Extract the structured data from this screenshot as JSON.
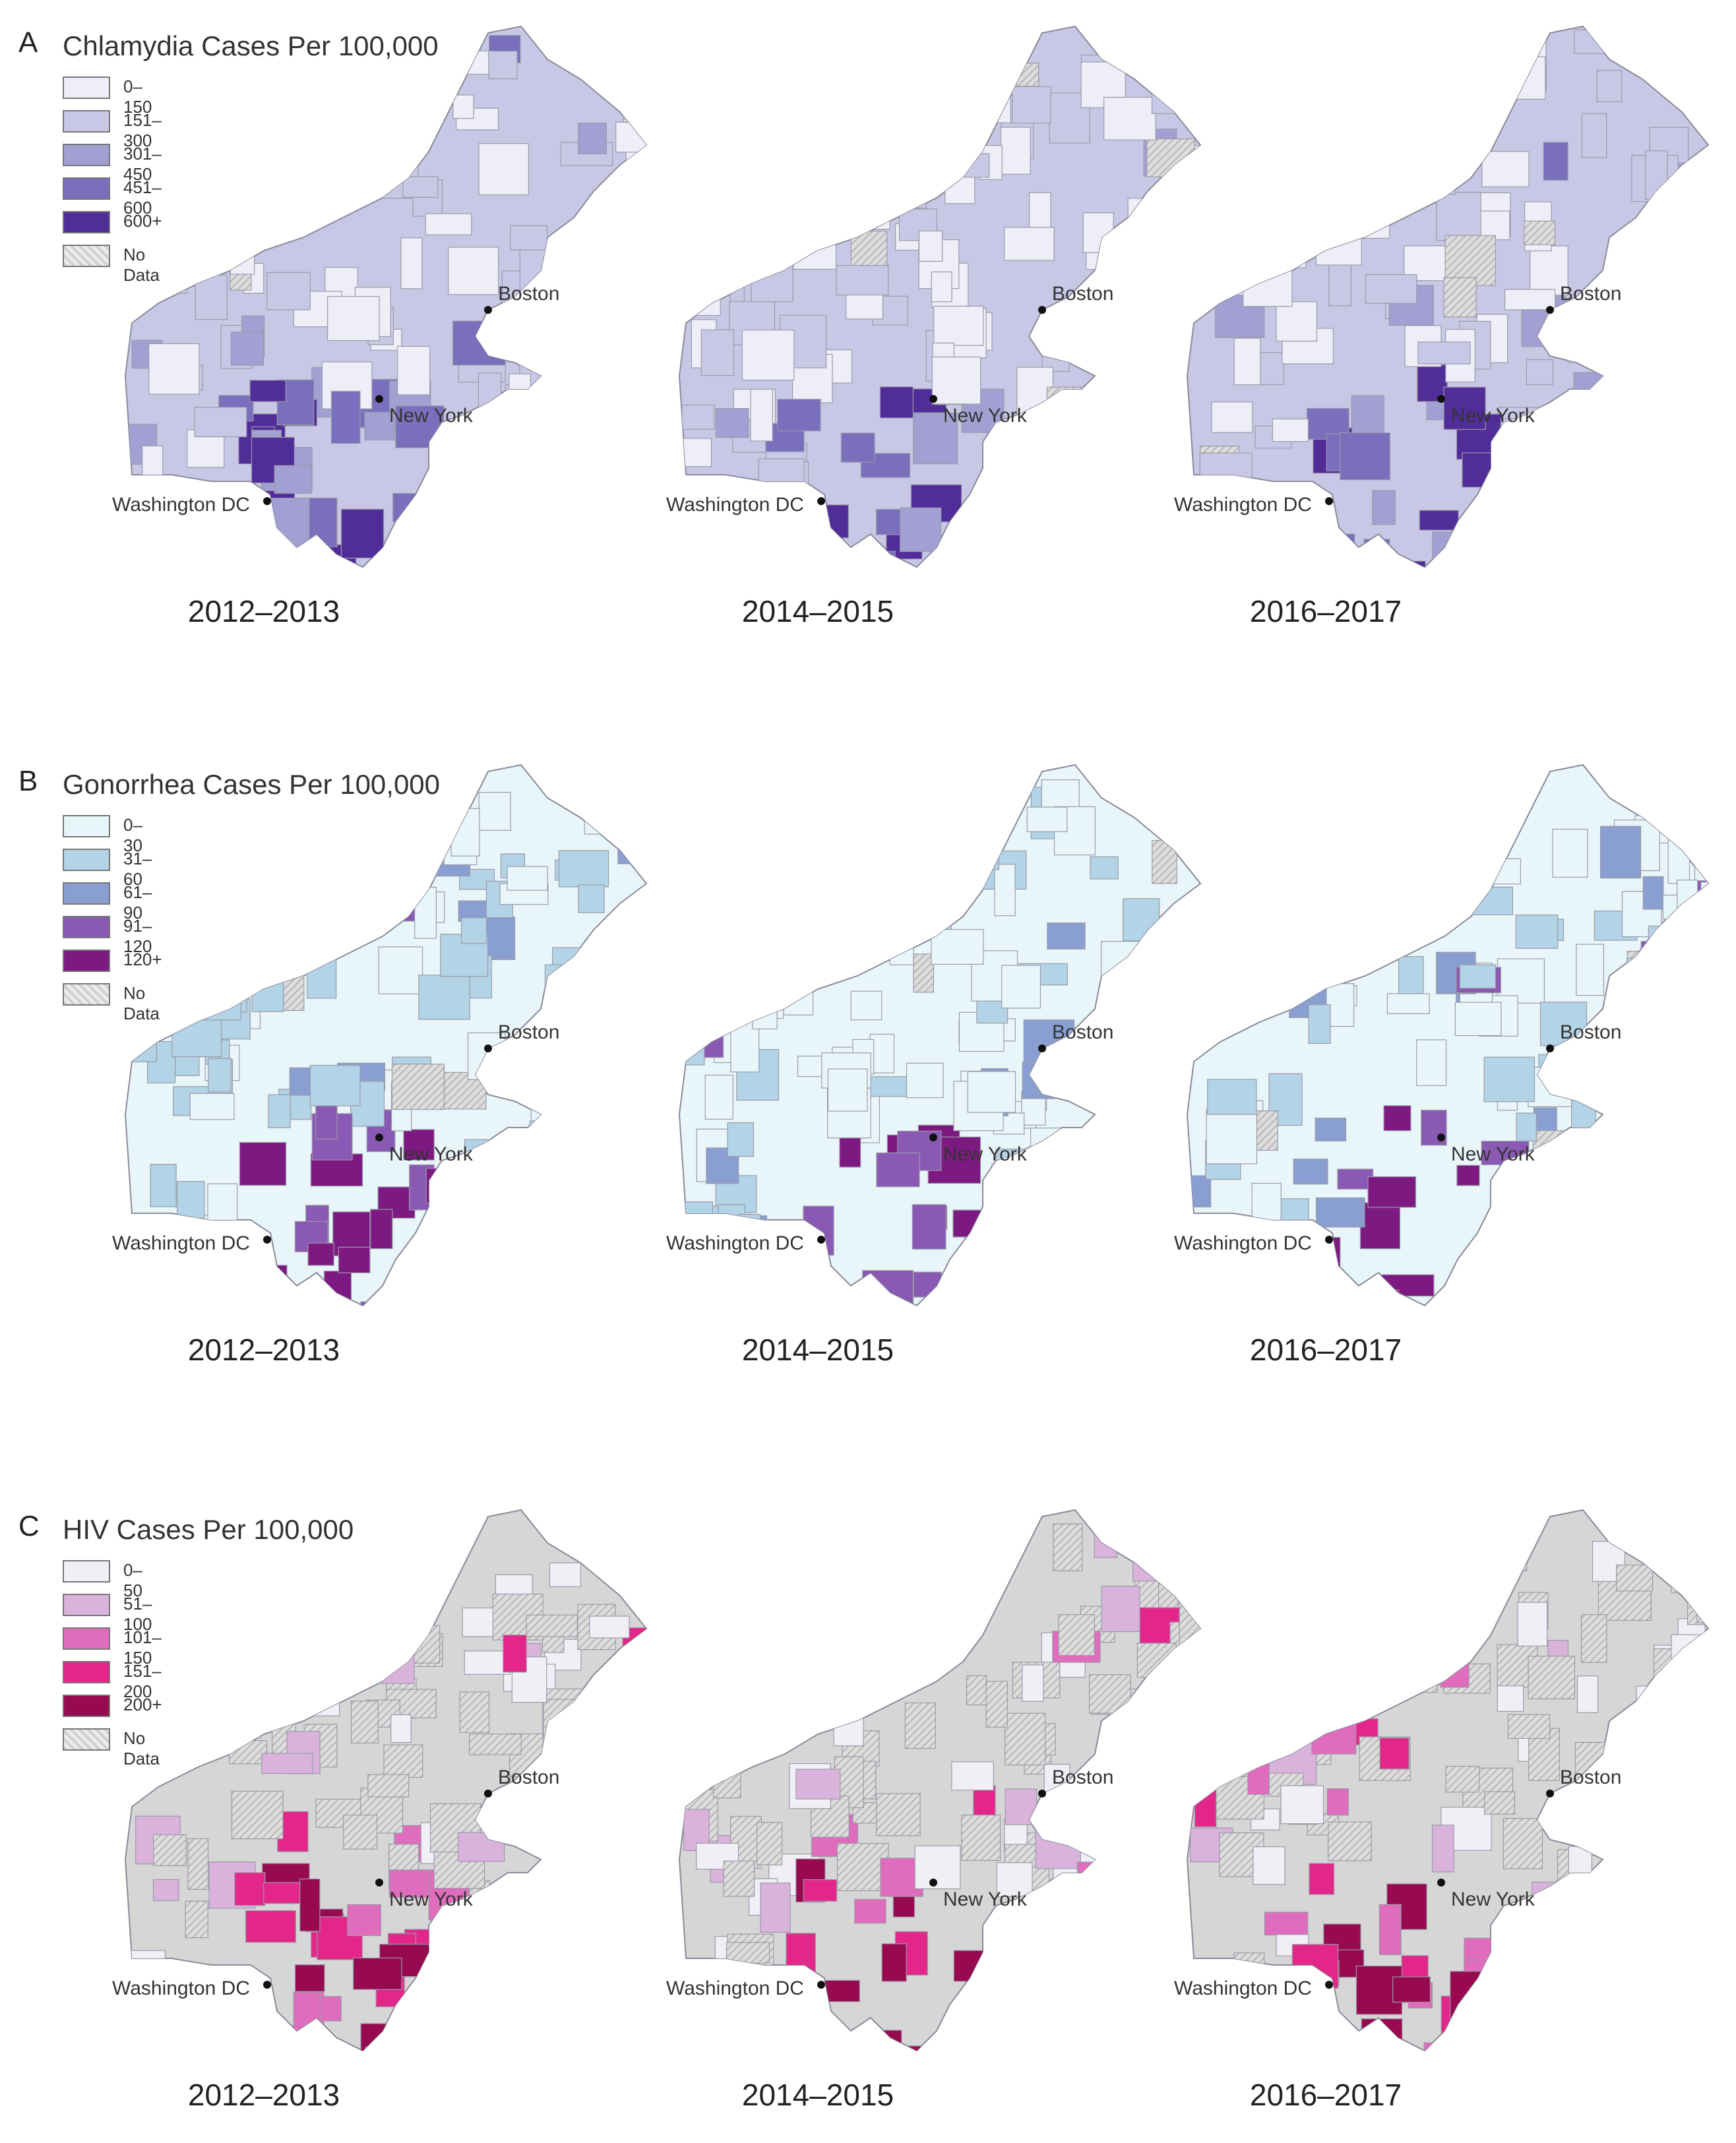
{
  "panels": [
    {
      "letter": "A",
      "title": "Chlamydia Cases Per 100,000",
      "legend": [
        {
          "label": "0–150",
          "color": "#eeeef8"
        },
        {
          "label": "151–300",
          "color": "#c8c8e6"
        },
        {
          "label": "301–450",
          "color": "#a29fd2"
        },
        {
          "label": "451–600",
          "color": "#7a6fbd"
        },
        {
          "label": "600+",
          "color": "#512d9a"
        },
        {
          "label": "No Data",
          "color": "#dcdcdc",
          "hatched": true
        }
      ],
      "base_color": "#c8c8e6",
      "periods": [
        "2012–2013",
        "2014–2015",
        "2016–2017"
      ]
    },
    {
      "letter": "B",
      "title": "Gonorrhea Cases Per 100,000",
      "legend": [
        {
          "label": "0–30",
          "color": "#e9f6f9"
        },
        {
          "label": "31–60",
          "color": "#b3d3e6"
        },
        {
          "label": "61–90",
          "color": "#8a9fd1"
        },
        {
          "label": "91–120",
          "color": "#8a59b4"
        },
        {
          "label": "120+",
          "color": "#7d1a82"
        },
        {
          "label": "No Data",
          "color": "#dcdcdc",
          "hatched": true
        }
      ],
      "base_color": "#e9f6f9",
      "periods": [
        "2012–2013",
        "2014–2015",
        "2016–2017"
      ]
    },
    {
      "letter": "C",
      "title": "HIV Cases Per 100,000",
      "legend": [
        {
          "label": "0–50",
          "color": "#f1eff6"
        },
        {
          "label": "51–100",
          "color": "#d9b3dc"
        },
        {
          "label": "101–150",
          "color": "#df6cbc"
        },
        {
          "label": "151–200",
          "color": "#e3278a"
        },
        {
          "label": "200+",
          "color": "#970a4f"
        },
        {
          "label": "No Data",
          "color": "#d6d6d6",
          "hatched": true
        }
      ],
      "base_color": "#d6d6d6",
      "periods": [
        "2012–2013",
        "2014–2015",
        "2016–2017"
      ]
    }
  ],
  "cities": [
    "Boston",
    "New York",
    "Washington DC"
  ]
}
